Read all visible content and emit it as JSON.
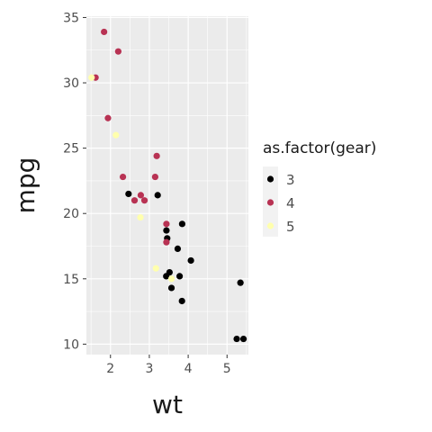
{
  "chart_data": {
    "type": "scatter",
    "title": "",
    "xlabel": "wt",
    "ylabel": "mpg",
    "xlim": [
      1.38,
      5.55
    ],
    "ylim": [
      9.2,
      35.1
    ],
    "x_ticks": [
      2,
      3,
      4,
      5
    ],
    "y_ticks": [
      10,
      15,
      20,
      25,
      30,
      35
    ],
    "x_tick_labels": [
      "2",
      "3",
      "4",
      "5"
    ],
    "y_tick_labels": [
      "10",
      "15",
      "20",
      "25",
      "30",
      "35"
    ],
    "grid": true,
    "legend": {
      "title": "as.factor(gear)",
      "position": "right",
      "entries": [
        "3",
        "4",
        "5"
      ]
    },
    "colors": {
      "3": "#000000",
      "4": "#b83253",
      "5": "#ffffad",
      "panel": "#ebebeb",
      "grid": "#ffffff"
    },
    "series": [
      {
        "name": "3",
        "points": [
          {
            "x": 3.215,
            "y": 21.4
          },
          {
            "x": 3.44,
            "y": 18.7
          },
          {
            "x": 3.46,
            "y": 18.1
          },
          {
            "x": 3.57,
            "y": 14.3
          },
          {
            "x": 4.07,
            "y": 16.4
          },
          {
            "x": 3.73,
            "y": 17.3
          },
          {
            "x": 3.78,
            "y": 15.2
          },
          {
            "x": 5.25,
            "y": 10.4
          },
          {
            "x": 5.424,
            "y": 10.4
          },
          {
            "x": 5.345,
            "y": 14.7
          },
          {
            "x": 2.465,
            "y": 21.5
          },
          {
            "x": 3.52,
            "y": 15.5
          },
          {
            "x": 3.435,
            "y": 15.2
          },
          {
            "x": 3.84,
            "y": 13.3
          },
          {
            "x": 3.845,
            "y": 19.2
          }
        ]
      },
      {
        "name": "4",
        "points": [
          {
            "x": 2.62,
            "y": 21.0
          },
          {
            "x": 2.875,
            "y": 21.0
          },
          {
            "x": 2.32,
            "y": 22.8
          },
          {
            "x": 3.19,
            "y": 24.4
          },
          {
            "x": 3.15,
            "y": 22.8
          },
          {
            "x": 3.44,
            "y": 19.2
          },
          {
            "x": 3.44,
            "y": 17.8
          },
          {
            "x": 2.2,
            "y": 32.4
          },
          {
            "x": 1.615,
            "y": 30.4
          },
          {
            "x": 1.835,
            "y": 33.9
          },
          {
            "x": 1.935,
            "y": 27.3
          },
          {
            "x": 2.78,
            "y": 21.4
          }
        ]
      },
      {
        "name": "5",
        "points": [
          {
            "x": 2.14,
            "y": 26.0
          },
          {
            "x": 1.513,
            "y": 30.4
          },
          {
            "x": 3.17,
            "y": 15.8
          },
          {
            "x": 2.77,
            "y": 19.7
          },
          {
            "x": 3.57,
            "y": 15.0
          }
        ]
      }
    ]
  }
}
